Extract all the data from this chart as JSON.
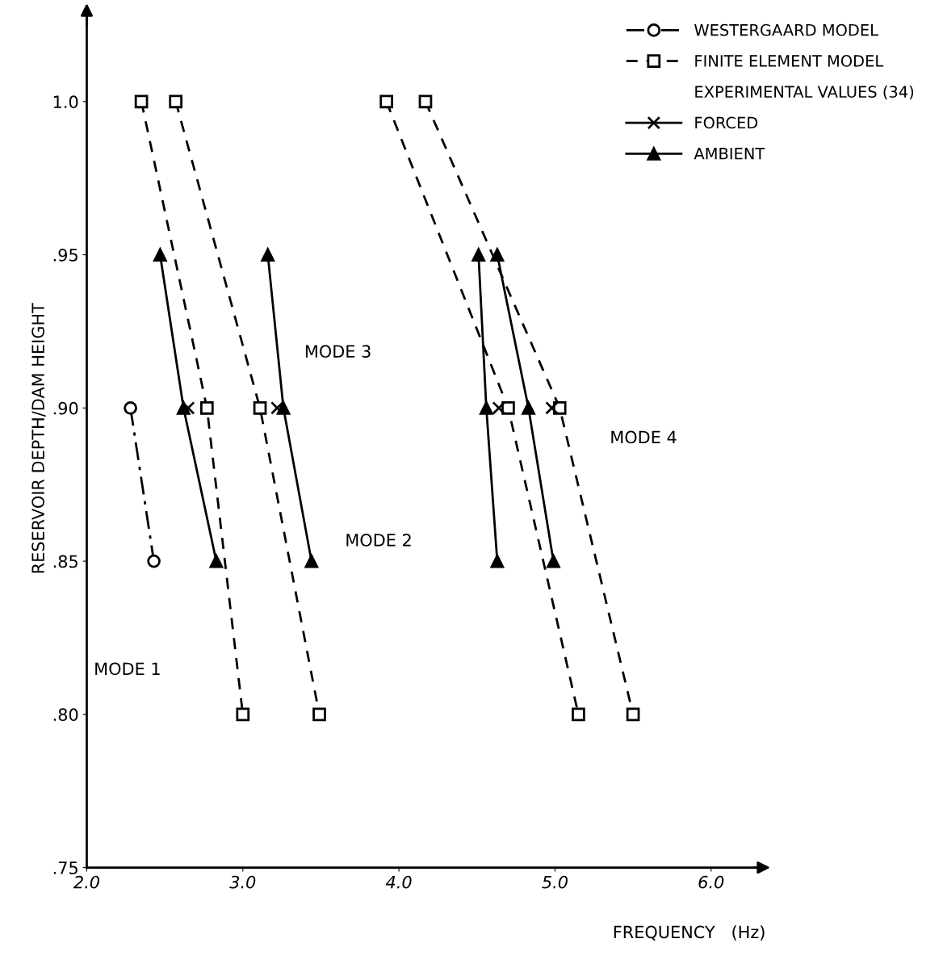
{
  "chart_data": {
    "type": "line",
    "xlabel": "FREQUENCY   (Hz)",
    "ylabel": "RESERVOIR DEPTH/DAM HEIGHT",
    "xlim": [
      2.0,
      6.35
    ],
    "ylim": [
      0.75,
      1.03
    ],
    "xticks": [
      {
        "value": 2.0,
        "label": "2.0"
      },
      {
        "value": 3.0,
        "label": "3.0"
      },
      {
        "value": 4.0,
        "label": "4.0"
      },
      {
        "value": 5.0,
        "label": "5.0"
      },
      {
        "value": 6.0,
        "label": "6.0"
      }
    ],
    "yticks": [
      {
        "value": 0.75,
        "label": ".75"
      },
      {
        "value": 0.8,
        "label": ".80"
      },
      {
        "value": 0.85,
        "label": ".85"
      },
      {
        "value": 0.9,
        "label": ".90"
      },
      {
        "value": 0.95,
        "label": ".95"
      },
      {
        "value": 1.0,
        "label": "1.0"
      }
    ],
    "grid": false,
    "legend": "top right",
    "series": [
      {
        "name": "WESTERGAARD MODEL",
        "color": "#000000",
        "marker": "circle",
        "line_style": "dashdot",
        "x": [
          2.28,
          2.43
        ],
        "values": [
          0.9,
          0.85
        ]
      },
      {
        "name": "FINITE ELEMENT MODEL",
        "color": "#000000",
        "marker": "square",
        "line_style": "dashed",
        "x": [
          2.35,
          2.77,
          3.0
        ],
        "values": [
          1.0,
          0.9,
          0.8
        ]
      },
      {
        "color": "#000000",
        "marker": "square",
        "line_style": "dashed",
        "x": [
          2.57,
          3.11,
          3.49
        ],
        "values": [
          1.0,
          0.9,
          0.8
        ]
      },
      {
        "color": "#000000",
        "marker": "square",
        "line_style": "dashed",
        "x": [
          3.92,
          4.7,
          5.15
        ],
        "values": [
          1.0,
          0.9,
          0.8
        ]
      },
      {
        "color": "#000000",
        "marker": "square",
        "line_style": "dashed",
        "x": [
          4.17,
          5.03,
          5.5
        ],
        "values": [
          1.0,
          0.9,
          0.8
        ]
      },
      {
        "name": "FORCED",
        "color": "#000000",
        "marker": "cross",
        "line_style": "solid",
        "x": [
          2.65,
          3.22,
          4.64,
          4.98
        ],
        "values": [
          0.9,
          0.9,
          0.9,
          0.9
        ],
        "type": "scatter"
      },
      {
        "name": "AMBIENT",
        "color": "#000000",
        "marker": "triangle",
        "line_style": "solid",
        "x": [
          2.47,
          2.62,
          2.83
        ],
        "values": [
          0.95,
          0.9,
          0.85
        ]
      },
      {
        "color": "#000000",
        "marker": "triangle",
        "line_style": "solid",
        "x": [
          3.16,
          3.26,
          3.44
        ],
        "values": [
          0.95,
          0.9,
          0.85
        ]
      },
      {
        "color": "#000000",
        "marker": "triangle",
        "line_style": "solid",
        "x": [
          4.51,
          4.56,
          4.63
        ],
        "values": [
          0.95,
          0.9,
          0.85
        ]
      },
      {
        "color": "#000000",
        "marker": "triangle",
        "line_style": "solid",
        "x": [
          4.63,
          4.83,
          4.99
        ],
        "values": [
          0.95,
          0.9,
          0.85
        ]
      }
    ],
    "annotations": [
      "EXPERIMENTAL VALUES (34)",
      "MODE 1",
      "MODE 2",
      "MODE 3",
      "MODE 4"
    ]
  }
}
